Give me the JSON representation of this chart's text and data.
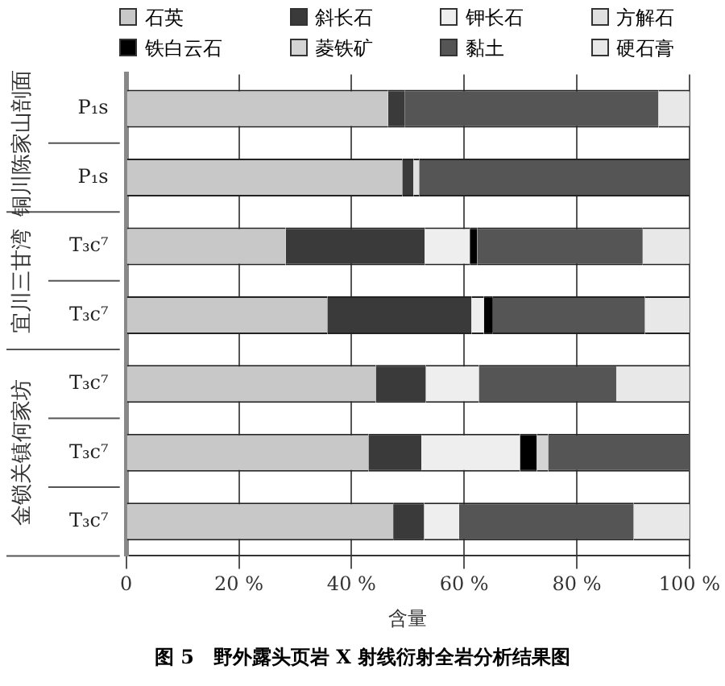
{
  "chart_data": {
    "type": "bar",
    "orientation": "horizontal",
    "stacked": true,
    "categories": [
      "P₁s",
      "P₁s",
      "T₃c⁷",
      "T₃c⁷",
      "T₃c⁷",
      "T₃c⁷",
      "T₃c⁷"
    ],
    "series": [
      {
        "name": "石英",
        "color": "#c8c8c8",
        "values": [
          46.5,
          49,
          28.3,
          35.7,
          44.3,
          43,
          47.4
        ]
      },
      {
        "name": "斜长石",
        "color": "#3a3a3a",
        "values": [
          3,
          2,
          24.7,
          25.6,
          8.9,
          9.4,
          5.5
        ]
      },
      {
        "name": "钾长石",
        "color": "#eeeeee",
        "values": [
          null,
          null,
          8,
          2.2,
          9.4,
          17.5,
          6.2
        ]
      },
      {
        "name": "方解石",
        "color": "#e0e0e0",
        "values": [
          null,
          1,
          null,
          null,
          null,
          null,
          null
        ]
      },
      {
        "name": "铁白云石",
        "color": "#000000",
        "values": [
          null,
          null,
          1.3,
          1.6,
          null,
          3,
          null
        ]
      },
      {
        "name": "菱铁矿",
        "color": "#d4d4d4",
        "values": [
          null,
          null,
          null,
          null,
          null,
          2,
          null
        ]
      },
      {
        "name": "黏土",
        "color": "#555555",
        "values": [
          45,
          48,
          29.4,
          27,
          24.4,
          25,
          31
        ]
      },
      {
        "name": "硬石膏",
        "color": "#e8e8e8",
        "values": [
          5.5,
          null,
          8.3,
          8,
          13,
          null,
          10
        ]
      }
    ],
    "xlim": [
      0,
      100
    ],
    "xticks": [
      0,
      {
        "value": 20,
        "label": "20 %"
      },
      {
        "value": 40,
        "label": "40 %"
      },
      {
        "value": 60,
        "label": "60 %"
      },
      {
        "value": 80,
        "label": "80 %"
      },
      {
        "value": 100,
        "label": "100 %"
      }
    ],
    "xlabel": "含量",
    "grid": "x",
    "legend": "top",
    "annotations": [
      "铜川陈家山剖面",
      "宜川三甘湾",
      "金锁关镇何家坊",
      "图 5　野外露头页岩 X 射线衍射全岩分析结果图"
    ]
  }
}
